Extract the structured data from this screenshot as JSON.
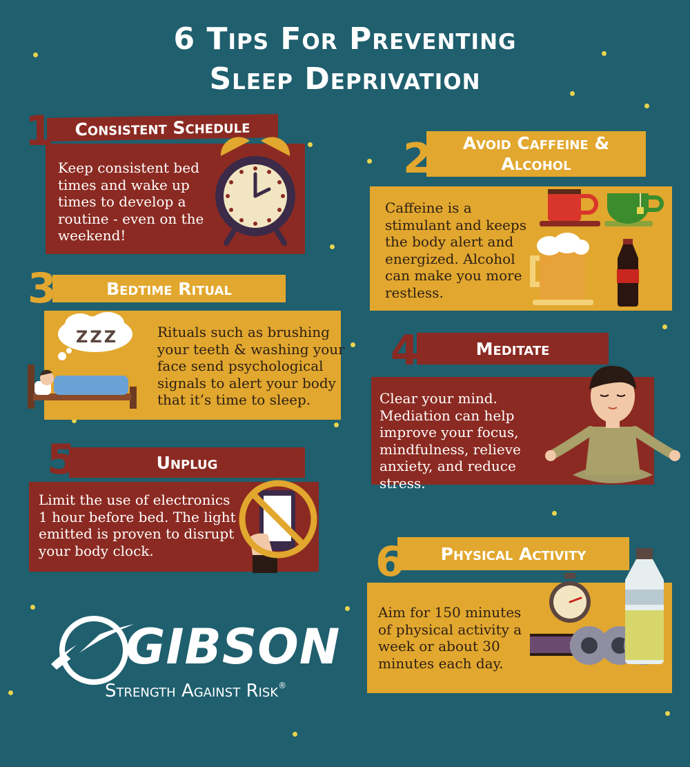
{
  "title": {
    "line1": "6 Tips For Preventing",
    "line2": "Sleep Deprivation"
  },
  "tips": [
    {
      "number": "1",
      "heading": "Consistent Schedule",
      "text": [
        "Keep consistent bed",
        "times and wake up",
        "times to develop a",
        "routine - even on the",
        "weekend!"
      ],
      "icon": "alarm-clock-icon"
    },
    {
      "number": "2",
      "heading": [
        "Avoid Caffeine &",
        "Alcohol"
      ],
      "text": [
        "Caffeine is a",
        "stimulant and keeps",
        "the body alert and",
        "energized. Alcohol",
        "can make you more",
        "restless."
      ],
      "icons": [
        "coffee-cup-icon",
        "tea-cup-icon",
        "beer-mug-icon",
        "soda-bottle-icon"
      ]
    },
    {
      "number": "3",
      "heading": "Bedtime Ritual",
      "text": [
        "Rituals such as brushing",
        "your teeth & washing your",
        "face send psychological",
        "signals to alert your body",
        "that it’s time to sleep."
      ],
      "bubble": "ZZZ",
      "icon": "sleeping-in-bed-icon"
    },
    {
      "number": "4",
      "heading": "Meditate",
      "text": [
        "Clear your mind.",
        "Mediation can help",
        "improve your focus,",
        "mindfulness, relieve",
        "anxiety, and reduce",
        "stress."
      ],
      "icon": "meditating-person-icon"
    },
    {
      "number": "5",
      "heading": "Unplug",
      "text": [
        "Limit the use of electronics",
        "1 hour before bed. The light",
        "emitted is proven to disrupt",
        "your body clock."
      ],
      "icon": "no-phone-icon"
    },
    {
      "number": "6",
      "heading": "Physical Activity",
      "text": [
        "Aim for 150 minutes",
        "of physical activity a",
        "week or about 30",
        "minutes each day."
      ],
      "icons": [
        "stopwatch-icon",
        "dumbbell-icon",
        "water-bottle-icon"
      ]
    }
  ],
  "logo": {
    "name": "GIBSON",
    "tagline": "Strength Against Risk",
    "registered": "®"
  },
  "colors": {
    "background": "#1f5f6e",
    "red": "#8b2a22",
    "gold": "#e2a72e",
    "dot": "#e8d44d"
  }
}
